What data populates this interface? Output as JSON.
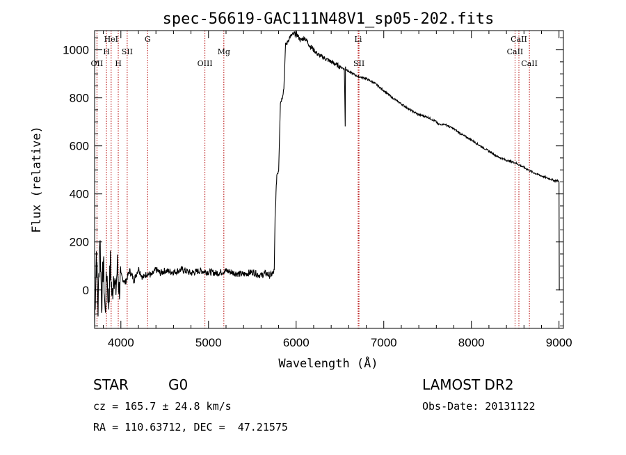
{
  "chart_data": {
    "type": "line",
    "title": "spec-56619-GAC111N48V1_sp05-202.fits",
    "xlabel": "Wavelength (Å)",
    "ylabel": "Flux (relative)",
    "xlim": [
      3700,
      9050
    ],
    "ylim": [
      -160,
      1080
    ],
    "x_ticks": [
      4000,
      5000,
      6000,
      7000,
      8000,
      9000
    ],
    "y_ticks": [
      0,
      200,
      400,
      600,
      800,
      1000
    ],
    "x_tick_labels": [
      "4000",
      "5000",
      "6000",
      "7000",
      "8000",
      "9000"
    ],
    "y_tick_labels": [
      "0",
      "200",
      "400",
      "600",
      "800",
      "1000"
    ],
    "grid": false,
    "series": [
      {
        "color": "#000000",
        "x": [
          3700,
          3720,
          3740,
          3760,
          3780,
          3800,
          3820,
          3840,
          3860,
          3880,
          3900,
          3920,
          3940,
          3960,
          3980,
          4000,
          4050,
          4100,
          4150,
          4200,
          4250,
          4300,
          4350,
          4400,
          4450,
          4500,
          4600,
          4700,
          4800,
          4900,
          5000,
          5100,
          5200,
          5300,
          5400,
          5500,
          5600,
          5650,
          5700,
          5720,
          5740,
          5750,
          5760,
          5770,
          5780,
          5800,
          5820,
          5840,
          5860,
          5880,
          5900,
          5920,
          5950,
          6000,
          6050,
          6100,
          6150,
          6200,
          6250,
          6300,
          6350,
          6400,
          6450,
          6500,
          6550,
          6560,
          6563,
          6566,
          6570,
          6600,
          6650,
          6700,
          6750,
          6800,
          6850,
          6900,
          7000,
          7100,
          7200,
          7300,
          7400,
          7500,
          7550,
          7600,
          7620,
          7700,
          7800,
          7900,
          8000,
          8100,
          8200,
          8300,
          8400,
          8500,
          8600,
          8700,
          8800,
          8900,
          8950,
          8990,
          9000,
          9003,
          9006
        ],
        "y": [
          -150,
          160,
          -80,
          240,
          -50,
          120,
          -100,
          80,
          -60,
          110,
          -40,
          90,
          -20,
          100,
          0,
          60,
          30,
          80,
          40,
          90,
          50,
          70,
          60,
          85,
          70,
          80,
          75,
          85,
          70,
          80,
          75,
          70,
          80,
          70,
          65,
          75,
          60,
          70,
          60,
          65,
          70,
          80,
          300,
          400,
          480,
          500,
          780,
          800,
          840,
          1020,
          1030,
          1050,
          1060,
          1070,
          1040,
          1050,
          1020,
          1000,
          980,
          970,
          960,
          950,
          940,
          930,
          920,
          680,
          930,
          915,
          920,
          910,
          900,
          890,
          885,
          880,
          870,
          860,
          830,
          800,
          775,
          750,
          730,
          720,
          710,
          700,
          690,
          690,
          670,
          645,
          625,
          600,
          578,
          555,
          540,
          530,
          510,
          490,
          475,
          462,
          455,
          455,
          450,
          0,
          0
        ]
      }
    ],
    "spectral_lines": [
      {
        "label": "HeI",
        "x": 3889,
        "row": 1
      },
      {
        "label": "H",
        "x": 3835,
        "row": 2
      },
      {
        "label": "OII",
        "x": 3727,
        "row": 3
      },
      {
        "label": "H",
        "x": 3970,
        "row": 3
      },
      {
        "label": "SII",
        "x": 4072,
        "row": 2
      },
      {
        "label": "G",
        "x": 4305,
        "row": 1
      },
      {
        "label": "OIII",
        "x": 4959,
        "row": 3
      },
      {
        "label": "Mg",
        "x": 5175,
        "row": 2
      },
      {
        "label": "Li",
        "x": 6708,
        "row": 1
      },
      {
        "label": "SII",
        "x": 6717,
        "row": 3
      },
      {
        "label": "CaII",
        "x": 8498,
        "row": 2
      },
      {
        "label": "CaII",
        "x": 8542,
        "row": 1
      },
      {
        "label": "CaII",
        "x": 8662,
        "row": 3
      }
    ]
  },
  "info": {
    "object_class": "STAR",
    "subclass": "G0",
    "survey": "LAMOST DR2",
    "cz_line": "cz = 165.7 ± 24.8 km/s",
    "obs_date_line": "Obs-Date: 20131122",
    "radec_line": "RA = 110.63712, DEC =  47.21575"
  },
  "colors": {
    "spectrum": "#000000",
    "line_marker": "#b30000",
    "axes": "#000000",
    "background": "#ffffff"
  }
}
